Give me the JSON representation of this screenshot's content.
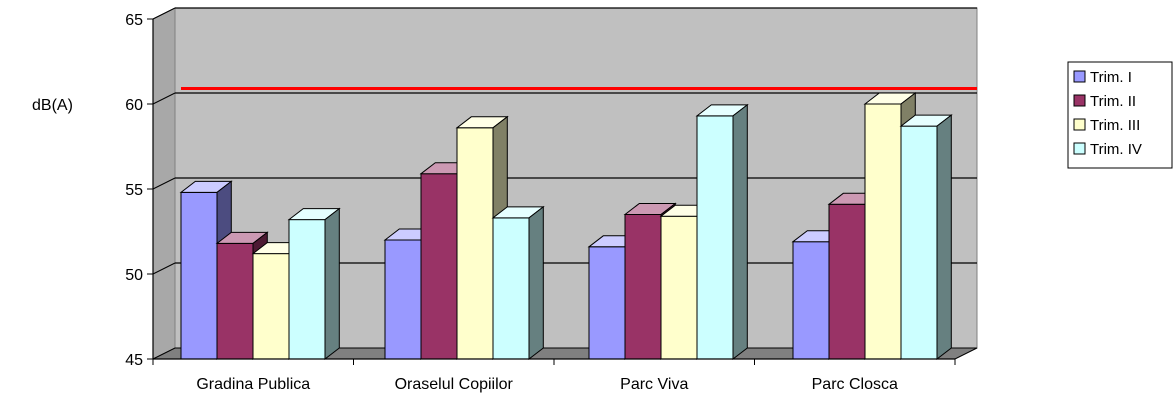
{
  "chart_data": {
    "type": "bar",
    "ylabel": "dB(A)",
    "categories": [
      "Gradina Publica",
      "Oraselul Copiilor",
      "Parc Viva",
      "Parc Closca"
    ],
    "series": [
      {
        "name": "Trim. I",
        "values": [
          54.8,
          52.0,
          51.6,
          51.9
        ]
      },
      {
        "name": "Trim. II",
        "values": [
          51.8,
          55.9,
          53.5,
          54.1
        ]
      },
      {
        "name": "Trim. III",
        "values": [
          51.2,
          58.6,
          53.4,
          60.0
        ]
      },
      {
        "name": "Trim. IV",
        "values": [
          53.2,
          53.3,
          59.3,
          58.7
        ]
      }
    ],
    "ylim": [
      45,
      65
    ],
    "yticks": [
      45,
      50,
      55,
      60,
      65
    ],
    "reference_line": {
      "value": 60.5,
      "color": "#ff0000"
    },
    "grid": true,
    "legend": "right",
    "colors": {
      "series_front": [
        "#9999ff",
        "#993366",
        "#ffffcc",
        "#ccffff"
      ],
      "series_side": [
        "#4c4c80",
        "#4d1a33",
        "#808066",
        "#668080"
      ],
      "series_top": [
        "#ccccff",
        "#cc99b3",
        "#ffffe6",
        "#e6ffff"
      ],
      "wall": "#c0c0c0",
      "floor": "#808080"
    }
  }
}
